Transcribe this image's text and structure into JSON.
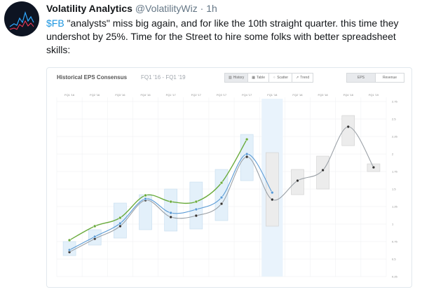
{
  "tweet": {
    "display_name": "Volatility Analytics",
    "handle": "@VolatilityWiz",
    "separator": "·",
    "time": "1h",
    "cashtag": "$FB",
    "body": " \"analysts\" miss big again, and for like the 10th straight quarter. this time they undershot by 25%. Time for the Street to hire some folks with better spreadsheet skills:"
  },
  "card": {
    "title": "Historical EPS Consensus",
    "subtitle": "FQ1 '16 - FQ1 '19",
    "view_tabs": [
      {
        "label": "History",
        "icon": "bar-chart-icon",
        "active": true
      },
      {
        "label": "Table",
        "icon": "table-icon",
        "active": false
      },
      {
        "label": "Scatter",
        "icon": "scatter-icon",
        "active": false
      },
      {
        "label": "Trend",
        "icon": "trend-icon",
        "active": false
      }
    ],
    "metric_tabs": [
      {
        "label": "EPS",
        "active": true
      },
      {
        "label": "Revenue",
        "active": false
      }
    ]
  },
  "chart_data": {
    "type": "line",
    "categories": [
      "FQ1 '16",
      "FQ2 '16",
      "FQ3 '16",
      "FQ4 '16",
      "FQ1 '17",
      "FQ2 '17",
      "FQ3 '17",
      "FQ4 '17",
      "FQ1 '18",
      "FQ2 '18",
      "FQ3 '18",
      "FQ4 '18",
      "FQ1 '19"
    ],
    "y_ticks": [
      "0.25",
      "0.5",
      "0.75",
      "1",
      "1.25",
      "1.5",
      "1.75",
      "2",
      "2.25",
      "2.5",
      "2.75"
    ],
    "ylim": [
      0.25,
      2.75
    ],
    "grid": true,
    "series": [
      {
        "role": "actual",
        "color": "#6aab3d",
        "values": [
          0.77,
          0.97,
          1.09,
          1.41,
          1.32,
          1.32,
          1.59,
          2.21,
          null,
          null,
          null,
          null,
          null
        ]
      },
      {
        "role": "estimate-blue",
        "color": "#5b9bd5",
        "values": [
          0.63,
          0.82,
          1.01,
          1.36,
          1.16,
          1.21,
          1.38,
          2.0,
          1.45,
          null,
          null,
          null,
          null
        ]
      },
      {
        "role": "estimate-gray",
        "color": "#9aa0a6",
        "values": [
          0.6,
          0.79,
          0.97,
          1.34,
          1.1,
          1.12,
          1.29,
          1.96,
          1.35,
          1.62,
          1.77,
          2.39,
          1.81
        ]
      }
    ],
    "ranges": [
      [
        0.55,
        0.75
      ],
      [
        0.7,
        0.92
      ],
      [
        0.8,
        1.3
      ],
      [
        0.92,
        1.42
      ],
      [
        0.9,
        1.5
      ],
      [
        0.93,
        1.6
      ],
      [
        1.05,
        1.78
      ],
      [
        1.62,
        2.28
      ],
      [
        0.97,
        2.02
      ],
      [
        1.42,
        1.78
      ],
      [
        1.5,
        1.97
      ],
      [
        2.12,
        2.55
      ],
      [
        1.75,
        1.86
      ]
    ],
    "highlight_category": "FQ1 '18"
  }
}
